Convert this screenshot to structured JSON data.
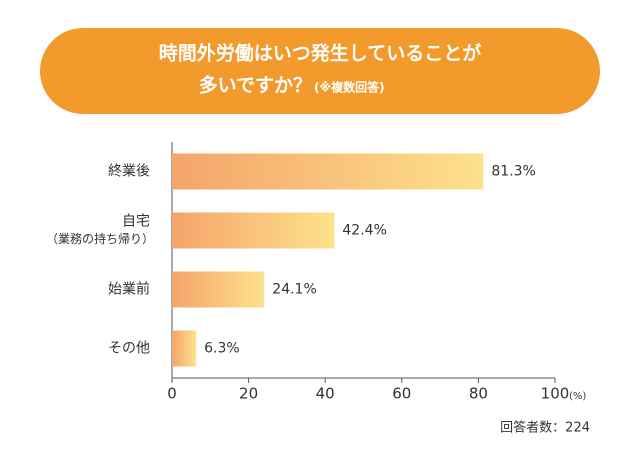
{
  "chart_data": {
    "type": "hbar",
    "title": [
      "時間外労働はいつ発生していることが",
      "多いですか？"
    ],
    "title_note": "(※複数回答)",
    "categories": [
      "終業後",
      [
        "自宅",
        "（業務の持ち帰り）"
      ],
      "始業前",
      "その他"
    ],
    "values": [
      81.3,
      42.4,
      24.1,
      6.3
    ],
    "value_labels": [
      "81.3%",
      "42.4%",
      "24.1%",
      "6.3%"
    ],
    "colors": [
      "#f4a46a",
      "#fde18c"
    ],
    "title_color": "#f39a2c",
    "xlim": [
      0,
      100
    ],
    "xticks": [
      0,
      20,
      40,
      60,
      80,
      100
    ],
    "x_unit": "(%)",
    "footnote": "回答者数：224"
  }
}
